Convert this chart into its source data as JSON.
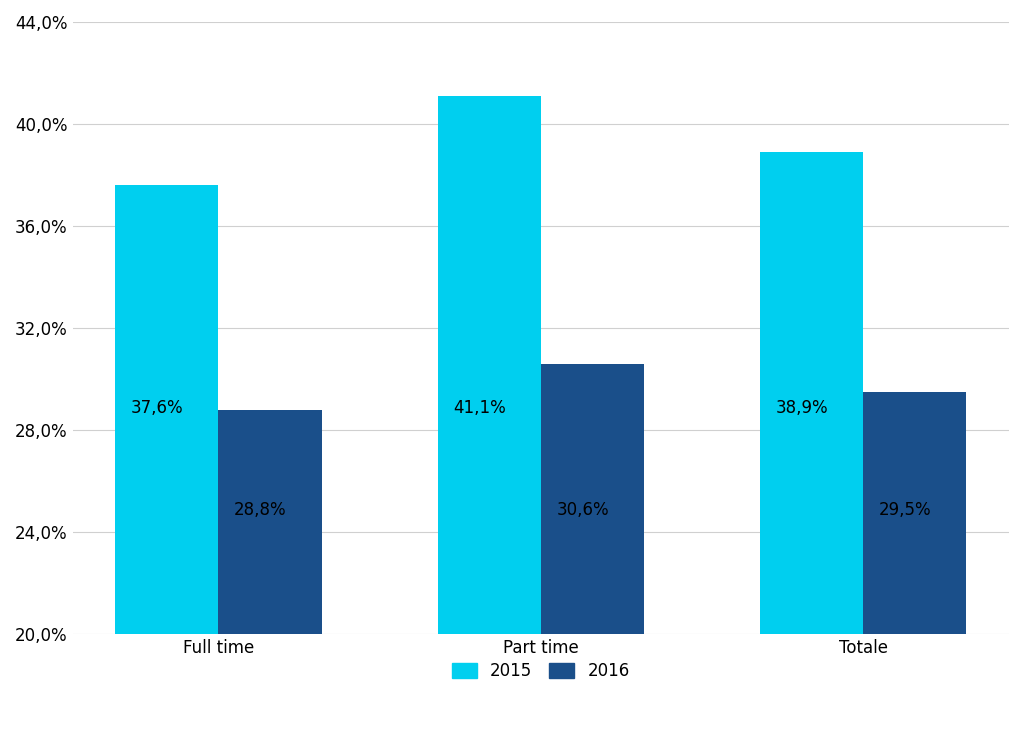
{
  "categories": [
    "Full time",
    "Part time",
    "Totale"
  ],
  "values_2015": [
    37.6,
    41.1,
    38.9
  ],
  "values_2016": [
    28.8,
    30.6,
    29.5
  ],
  "labels_2015": [
    "37,6%",
    "41,1%",
    "38,9%"
  ],
  "labels_2016": [
    "28,8%",
    "30,6%",
    "29,5%"
  ],
  "color_2015": "#00CFEF",
  "color_2016": "#1A4F8A",
  "ylim_min": 20.0,
  "ylim_max": 44.0,
  "yticks": [
    20.0,
    24.0,
    28.0,
    32.0,
    36.0,
    40.0,
    44.0
  ],
  "ytick_labels": [
    "20,0%",
    "24,0%",
    "28,0%",
    "32,0%",
    "36,0%",
    "40,0%",
    "44,0%"
  ],
  "legend_labels": [
    "2015",
    "2016"
  ],
  "bar_width": 0.32,
  "background_color": "#ffffff",
  "label_fontsize": 12,
  "tick_fontsize": 12,
  "category_fontsize": 12,
  "legend_fontsize": 12
}
